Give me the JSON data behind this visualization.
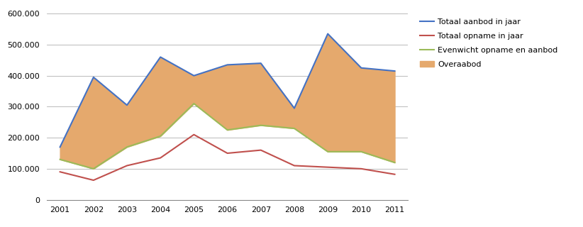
{
  "years": [
    2001,
    2002,
    2003,
    2004,
    2005,
    2006,
    2007,
    2008,
    2009,
    2010,
    2011
  ],
  "totaal_aanbod": [
    170000,
    395000,
    305000,
    460000,
    400000,
    435000,
    440000,
    295000,
    535000,
    425000,
    415000
  ],
  "totaal_opname": [
    90000,
    63000,
    110000,
    135000,
    210000,
    150000,
    160000,
    110000,
    105000,
    100000,
    82000
  ],
  "evenwicht": [
    130000,
    100000,
    170000,
    205000,
    310000,
    225000,
    240000,
    230000,
    155000,
    155000,
    120000
  ],
  "color_aanbod": "#4472C4",
  "color_opname": "#C0504D",
  "color_evenwicht": "#9BBB59",
  "color_overaabod": "#E5A96D",
  "ylim": [
    0,
    600000
  ],
  "yticks": [
    0,
    100000,
    200000,
    300000,
    400000,
    500000,
    600000
  ],
  "legend_labels": [
    "Totaal aanbod in jaar",
    "Totaal opname in jaar",
    "Evenwicht opname en aanbod",
    "Overaabod"
  ],
  "bg_color": "#FFFFFF"
}
